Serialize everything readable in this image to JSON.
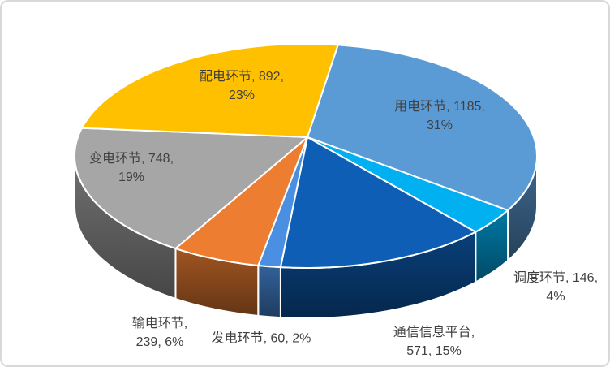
{
  "window": {
    "background_color": "#FFFFFF",
    "border_color": "#D9D9D9"
  },
  "chart_data": {
    "type": "pie",
    "style": "3d-pie",
    "title": "",
    "legend": "none",
    "data_label_format": "category, value, percent",
    "label_color": "#404040",
    "slice_stroke_color": "#FFFFFF",
    "start_angle_deg": 8,
    "slices": [
      {
        "name": "用电环节",
        "value": 1185,
        "pct": 31,
        "color": "#5B9BD5",
        "label_lines": [
          "用电环节, 1185,",
          "31%"
        ]
      },
      {
        "name": "调度环节",
        "value": 146,
        "pct": 4,
        "color": "#00B0F0",
        "label_lines": [
          "调度环节, 146,",
          "4%"
        ]
      },
      {
        "name": "通信信息平台",
        "value": 571,
        "pct": 15,
        "color": "#0D5EB4",
        "label_lines": [
          "通信信息平台,",
          "571, 15%"
        ]
      },
      {
        "name": "发电环节",
        "value": 60,
        "pct": 2,
        "color": "#4A8FE2",
        "label_lines": [
          "发电环节, 60, 2%"
        ]
      },
      {
        "name": "输电环节",
        "value": 239,
        "pct": 6,
        "color": "#ED7D31",
        "label_lines": [
          "输电环节,",
          "239, 6%"
        ]
      },
      {
        "name": "变电环节",
        "value": 748,
        "pct": 19,
        "color": "#A6A6A6",
        "label_lines": [
          "变电环节, 748,",
          "19%"
        ]
      },
      {
        "name": "配电环节",
        "value": 892,
        "pct": 23,
        "color": "#FFC000",
        "label_lines": [
          "配电环节, 892,",
          "23%"
        ]
      }
    ]
  }
}
